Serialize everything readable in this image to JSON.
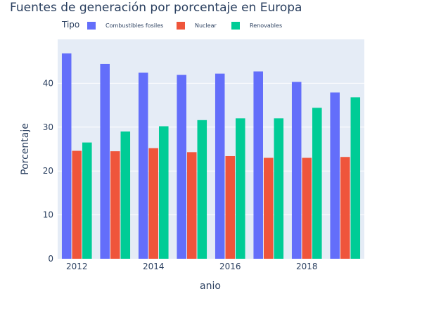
{
  "chart_data": {
    "type": "bar",
    "title": "Fuentes de generación por porcentaje en Europa",
    "xlabel": "anio",
    "ylabel": "Porcentaje",
    "legend_title": "Tipo",
    "legend_position": "top",
    "grid": true,
    "x": [
      2012,
      2013,
      2014,
      2015,
      2016,
      2017,
      2018,
      2019
    ],
    "x_tick_values": [
      2012,
      2014,
      2016,
      2018
    ],
    "x_tick_labels": [
      "2012",
      "2014",
      "2016",
      "2018"
    ],
    "ylim": [
      0,
      50
    ],
    "y_ticks": [
      0,
      10,
      20,
      30,
      40
    ],
    "y_tick_labels": [
      "0",
      "10",
      "20",
      "30",
      "40"
    ],
    "series": [
      {
        "name": "Combustibles fosiles",
        "color": "#636efa",
        "values": [
          46.8,
          44.4,
          42.4,
          41.9,
          42.2,
          42.7,
          40.3,
          37.9
        ]
      },
      {
        "name": "Nuclear",
        "color": "#ef553b",
        "values": [
          24.6,
          24.5,
          25.2,
          24.3,
          23.4,
          23.0,
          23.0,
          23.2
        ]
      },
      {
        "name": "Renovables",
        "color": "#00cc96",
        "values": [
          26.5,
          29.0,
          30.2,
          31.6,
          32.0,
          32.0,
          34.4,
          36.8
        ]
      }
    ]
  }
}
